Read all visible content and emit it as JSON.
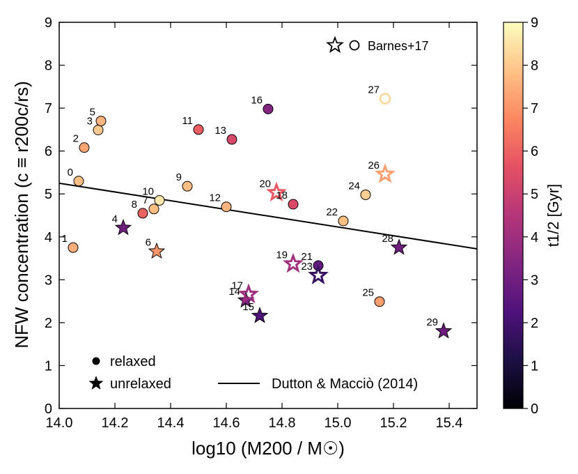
{
  "chart_data": {
    "type": "scatter",
    "xlabel": "log10 (M200 / M☉)",
    "ylabel": "NFW concentration (c ≡ r200c/rs)",
    "xlim": [
      14.0,
      15.5
    ],
    "ylim": [
      0,
      9
    ],
    "xticks": [
      "14.0",
      "14.2",
      "14.4",
      "14.6",
      "14.8",
      "15.0",
      "15.2",
      "15.4"
    ],
    "yticks": [
      "0",
      "1",
      "2",
      "3",
      "4",
      "5",
      "6",
      "7",
      "8",
      "9"
    ],
    "colorbar": {
      "label": "t1/2 [Gyr]",
      "range": [
        0,
        9
      ],
      "ticks": [
        "0",
        "1",
        "2",
        "3",
        "4",
        "5",
        "6",
        "7",
        "8",
        "9"
      ],
      "colormap": "magma"
    },
    "legend": {
      "relaxed": "relaxed",
      "unrelaxed": "unrelaxed",
      "line": "Dutton & Macciò (2014)",
      "barnes": "Barnes+17"
    },
    "relation_line": {
      "name": "Dutton & Macciò (2014)",
      "x": [
        14.0,
        15.5
      ],
      "y": [
        5.25,
        3.72
      ]
    },
    "series": [
      {
        "id": "0",
        "x": 14.07,
        "y": 5.3,
        "t_half": 7.8,
        "marker": "circle",
        "filled": true
      },
      {
        "id": "1",
        "x": 14.05,
        "y": 3.75,
        "t_half": 7.5,
        "marker": "circle",
        "filled": true
      },
      {
        "id": "2",
        "x": 14.09,
        "y": 6.08,
        "t_half": 7.3,
        "marker": "circle",
        "filled": true
      },
      {
        "id": "3",
        "x": 14.14,
        "y": 6.49,
        "t_half": 8.0,
        "marker": "circle",
        "filled": true
      },
      {
        "id": "4",
        "x": 14.23,
        "y": 4.21,
        "t_half": 3.0,
        "marker": "star",
        "filled": true
      },
      {
        "id": "5",
        "x": 14.15,
        "y": 6.7,
        "t_half": 7.6,
        "marker": "circle",
        "filled": true
      },
      {
        "id": "6",
        "x": 14.35,
        "y": 3.66,
        "t_half": 7.0,
        "marker": "star",
        "filled": true
      },
      {
        "id": "7",
        "x": 14.34,
        "y": 4.65,
        "t_half": 7.8,
        "marker": "circle",
        "filled": true
      },
      {
        "id": "8",
        "x": 14.3,
        "y": 4.55,
        "t_half": 6.0,
        "marker": "circle",
        "filled": true
      },
      {
        "id": "9",
        "x": 14.46,
        "y": 5.18,
        "t_half": 7.8,
        "marker": "circle",
        "filled": true
      },
      {
        "id": "10",
        "x": 14.36,
        "y": 4.85,
        "t_half": 8.6,
        "marker": "circle",
        "filled": true
      },
      {
        "id": "11",
        "x": 14.5,
        "y": 6.5,
        "t_half": 5.9,
        "marker": "circle",
        "filled": true
      },
      {
        "id": "12",
        "x": 14.6,
        "y": 4.7,
        "t_half": 7.6,
        "marker": "circle",
        "filled": true
      },
      {
        "id": "13",
        "x": 14.62,
        "y": 6.27,
        "t_half": 5.3,
        "marker": "circle",
        "filled": true
      },
      {
        "id": "14",
        "x": 14.67,
        "y": 2.52,
        "t_half": 3.2,
        "marker": "star",
        "filled": true
      },
      {
        "id": "15",
        "x": 14.72,
        "y": 2.16,
        "t_half": 2.3,
        "marker": "star",
        "filled": true
      },
      {
        "id": "16",
        "x": 14.75,
        "y": 6.98,
        "t_half": 3.4,
        "marker": "circle",
        "filled": true
      },
      {
        "id": "17",
        "x": 14.68,
        "y": 2.66,
        "t_half": 4.0,
        "marker": "star",
        "filled": false
      },
      {
        "id": "18",
        "x": 14.84,
        "y": 4.76,
        "t_half": 5.4,
        "marker": "circle",
        "filled": true
      },
      {
        "id": "19",
        "x": 14.84,
        "y": 3.37,
        "t_half": 4.1,
        "marker": "star",
        "filled": false
      },
      {
        "id": "20",
        "x": 14.78,
        "y": 5.03,
        "t_half": 5.8,
        "marker": "star",
        "filled": false
      },
      {
        "id": "21",
        "x": 14.93,
        "y": 3.33,
        "t_half": 2.7,
        "marker": "circle",
        "filled": true
      },
      {
        "id": "22",
        "x": 15.02,
        "y": 4.37,
        "t_half": 7.8,
        "marker": "circle",
        "filled": true
      },
      {
        "id": "23",
        "x": 14.93,
        "y": 3.1,
        "t_half": 1.7,
        "marker": "star",
        "filled": false
      },
      {
        "id": "24",
        "x": 15.1,
        "y": 4.98,
        "t_half": 8.1,
        "marker": "circle",
        "filled": true
      },
      {
        "id": "25",
        "x": 15.15,
        "y": 2.49,
        "t_half": 7.2,
        "marker": "circle",
        "filled": true
      },
      {
        "id": "26",
        "x": 15.17,
        "y": 5.46,
        "t_half": 7.2,
        "marker": "star",
        "filled": false
      },
      {
        "id": "27",
        "x": 15.17,
        "y": 7.22,
        "t_half": 8.3,
        "marker": "circle",
        "filled": false
      },
      {
        "id": "28",
        "x": 15.22,
        "y": 3.75,
        "t_half": 3.0,
        "marker": "star",
        "filled": true
      },
      {
        "id": "29",
        "x": 15.38,
        "y": 1.8,
        "t_half": 2.9,
        "marker": "star",
        "filled": true
      }
    ]
  }
}
